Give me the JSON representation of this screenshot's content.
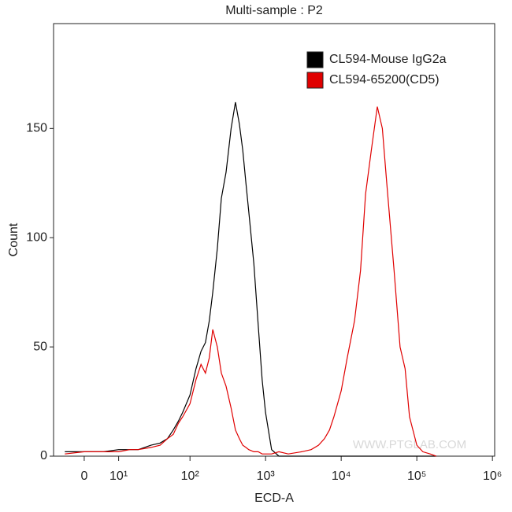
{
  "chart_data": {
    "type": "line",
    "title": "Multi-sample : P2",
    "x_label": "ECD-A",
    "y_label": "Count",
    "x_scale": "biexponential",
    "x": [
      -5,
      0,
      5,
      10,
      15,
      20,
      30,
      40,
      50,
      60,
      70,
      80,
      100,
      120,
      140,
      160,
      180,
      200,
      230,
      260,
      300,
      350,
      400,
      450,
      500,
      550,
      600,
      700,
      800,
      900,
      1000,
      1200,
      1500,
      2000,
      3000,
      4000,
      5000,
      6000,
      7000,
      8000,
      10000,
      12000,
      15000,
      18000,
      21000,
      25000,
      30000,
      35000,
      40000,
      50000,
      60000,
      70000,
      80000,
      100000,
      120000,
      150000,
      180000
    ],
    "series": [
      {
        "name": "CL594-Mouse IgG2a",
        "color": "#000000",
        "values": [
          2,
          2,
          2,
          3,
          3,
          3,
          5,
          6,
          8,
          12,
          16,
          20,
          28,
          40,
          48,
          52,
          62,
          75,
          95,
          118,
          130,
          150,
          162,
          152,
          140,
          125,
          112,
          88,
          60,
          35,
          20,
          3,
          0,
          0,
          0,
          0,
          0,
          0,
          0,
          0,
          0,
          0,
          0,
          0,
          0,
          0,
          0,
          0,
          0,
          0,
          0,
          0,
          0,
          0,
          0,
          0,
          0
        ]
      },
      {
        "name": "CL594-65200(CD5)",
        "color": "#e00000",
        "values": [
          1,
          2,
          2,
          2,
          3,
          3,
          4,
          5,
          8,
          10,
          15,
          18,
          24,
          35,
          42,
          38,
          45,
          58,
          50,
          38,
          32,
          22,
          12,
          8,
          5,
          4,
          3,
          2,
          2,
          1,
          1,
          1,
          2,
          1,
          2,
          3,
          5,
          8,
          12,
          18,
          30,
          45,
          62,
          85,
          120,
          140,
          160,
          150,
          125,
          85,
          50,
          40,
          18,
          5,
          2,
          1,
          0
        ]
      }
    ],
    "xlim": [
      -8.6,
      1070000
    ],
    "xticks": [
      0,
      {
        "value": 10,
        "label": "10¹"
      },
      {
        "value": 100,
        "label": "10²"
      },
      {
        "value": 1000,
        "label": "10³"
      },
      {
        "value": 10000,
        "label": "10⁴"
      },
      {
        "value": 100000,
        "label": "10⁵"
      },
      {
        "value": 1000000,
        "label": "10⁶"
      }
    ],
    "ylim": [
      0,
      198
    ],
    "yticks": [
      0,
      50,
      100,
      150
    ],
    "legend": "top-right",
    "annotation": "WWW.PTGLAB.COM"
  }
}
